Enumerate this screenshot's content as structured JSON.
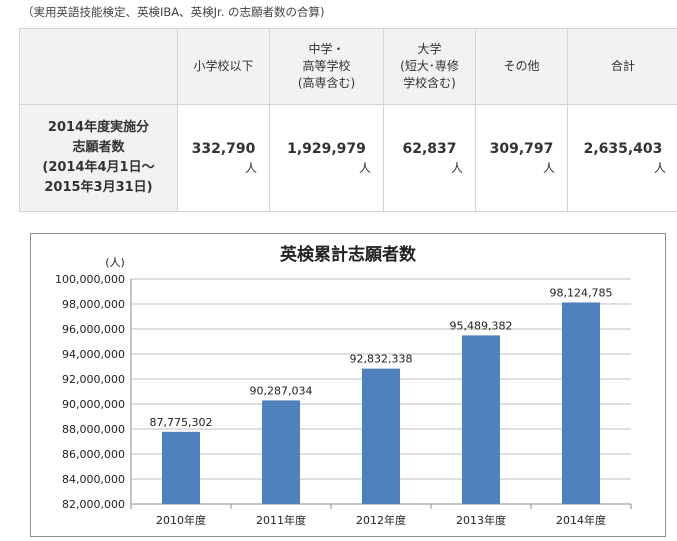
{
  "note": "（実用英語技能検定、英検IBA、英検Jr. の志願者数の合算)",
  "table": {
    "headers": [
      "小学校以下",
      "中学・\n高等学校\n(高専含む)",
      "大学\n(短大･専修\n学校含む)",
      "その他",
      "合計"
    ],
    "row_header": "2014年度実施分\n志願者数\n(2014年4月1日～\n2015年3月31日)",
    "values": [
      "332,790",
      "1,929,979",
      "62,837",
      "309,797",
      "2,635,403"
    ],
    "unit": "人"
  },
  "chart_data": {
    "type": "bar",
    "title": "英検累計志願者数",
    "ylabel": "(人)",
    "xlabel": "",
    "categories": [
      "2010年度",
      "2011年度",
      "2012年度",
      "2013年度",
      "2014年度"
    ],
    "values": [
      87775302,
      90287034,
      92832338,
      95489382,
      98124785
    ],
    "value_labels": [
      "87,775,302",
      "90,287,034",
      "92,832,338",
      "95,489,382",
      "98,124,785"
    ],
    "ylim": [
      82000000,
      100000000
    ],
    "yticks": [
      "100,000,000",
      "98,000,000",
      "96,000,000",
      "94,000,000",
      "92,000,000",
      "90,000,000",
      "88,000,000",
      "86,000,000",
      "84,000,000",
      "82,000,000"
    ],
    "grid": true,
    "bar_color": "#4f81bd"
  }
}
